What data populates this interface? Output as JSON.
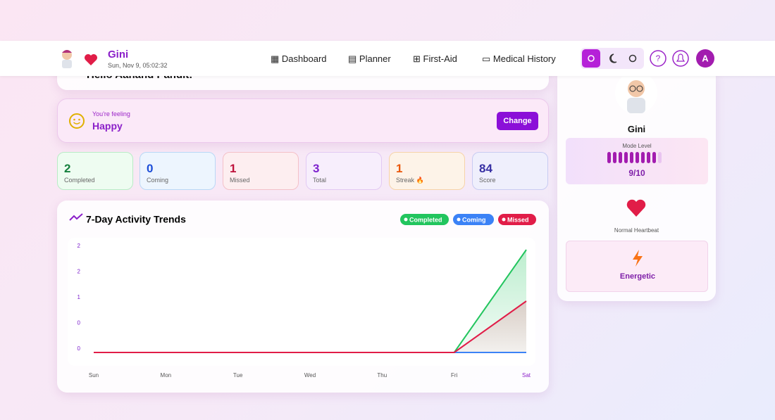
{
  "header": {
    "name": "Gini",
    "datetime": "Sun, Nov 9, 05:02:32",
    "nav": [
      "Dashboard",
      "Planner",
      "First-Aid",
      "Medical History"
    ],
    "avatar_letter": "A"
  },
  "greeting": "Hello Aanand Pandit!",
  "mood": {
    "label": "You're feeling",
    "value": "Happy",
    "button": "Change"
  },
  "stats": [
    {
      "value": 2,
      "label": "Completed"
    },
    {
      "value": 0,
      "label": "Coming"
    },
    {
      "value": 1,
      "label": "Missed"
    },
    {
      "value": 3,
      "label": "Total"
    },
    {
      "value": 1,
      "label": "Streak 🔥"
    },
    {
      "value": 84,
      "label": "Score"
    }
  ],
  "profile": {
    "name": "Gini",
    "mode_label": "Mode Level",
    "mode_value": "9/10",
    "heartbeat": "Normal Heartbeat",
    "energy": "Energetic"
  },
  "chart_data": {
    "type": "line",
    "title": "7-Day Activity Trends",
    "categories": [
      "Sun",
      "Mon",
      "Tue",
      "Wed",
      "Thu",
      "Fri",
      "Sat"
    ],
    "series": [
      {
        "name": "Completed",
        "color": "#22c55e",
        "values": [
          0,
          0,
          0,
          0,
          0,
          0,
          2
        ]
      },
      {
        "name": "Coming",
        "color": "#3b82f6",
        "values": [
          0,
          0,
          0,
          0,
          0,
          0,
          0
        ]
      },
      {
        "name": "Missed",
        "color": "#e11d48",
        "values": [
          0,
          0,
          0,
          0,
          0,
          0,
          1
        ]
      }
    ],
    "ylim": [
      0,
      2
    ],
    "yticks": [
      {
        "value": 0,
        "label": "0"
      },
      {
        "value": 0.5,
        "label": "0"
      },
      1,
      {
        "value": 1.5,
        "label": "2"
      },
      2
    ],
    "grid": false
  }
}
